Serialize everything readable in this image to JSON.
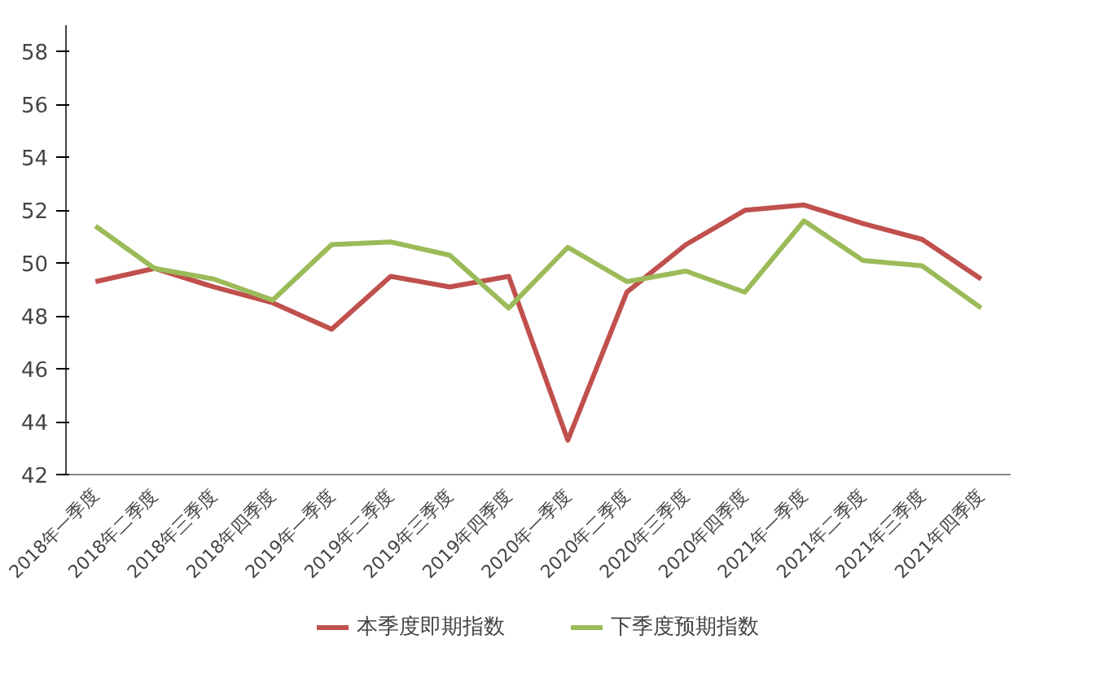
{
  "chart_data": {
    "type": "line",
    "categories": [
      "2018年一季度",
      "2018年二季度",
      "2018年三季度",
      "2018年四季度",
      "2019年一季度",
      "2019年二季度",
      "2019年三季度",
      "2019年四季度",
      "2020年一季度",
      "2020年二季度",
      "2020年三季度",
      "2020年四季度",
      "2021年一季度",
      "2021年二季度",
      "2021年三季度",
      "2021年四季度"
    ],
    "series": [
      {
        "name": "本季度即期指数",
        "color": "#c0504d",
        "values": [
          49.3,
          49.8,
          49.1,
          48.5,
          47.5,
          49.5,
          49.1,
          49.5,
          43.3,
          48.9,
          50.7,
          52.0,
          52.2,
          51.5,
          50.9,
          49.4
        ]
      },
      {
        "name": "下季度预期指数",
        "color": "#9bbb59",
        "values": [
          51.4,
          49.8,
          49.4,
          48.6,
          50.7,
          50.8,
          50.3,
          48.3,
          50.6,
          49.3,
          49.7,
          48.9,
          51.6,
          50.1,
          49.9,
          48.3
        ]
      }
    ],
    "ylim": [
      42,
      59
    ],
    "yticks": [
      42,
      44,
      46,
      48,
      50,
      52,
      54,
      56,
      58
    ],
    "grid": false,
    "legend": "bottom",
    "marker": "none",
    "line_style": "solid"
  }
}
